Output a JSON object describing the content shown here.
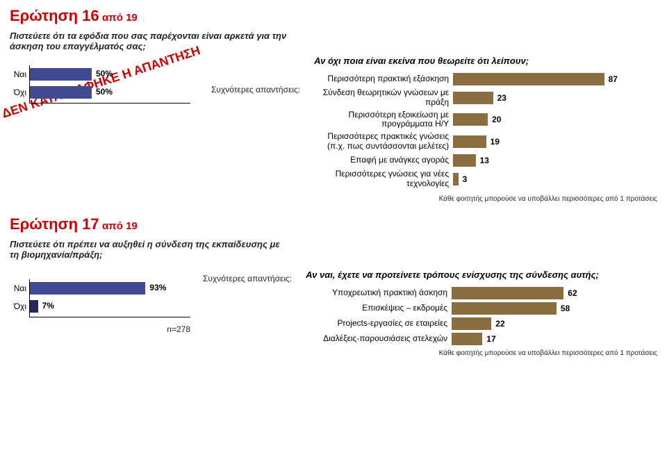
{
  "colors": {
    "accent": "#cc0000",
    "bar1": "#3f4a93",
    "bar1b": "#25265e",
    "bar2": "#8c6d3f",
    "bg": "#ffffff",
    "text": "#222222"
  },
  "q16": {
    "title_main": "Ερώτηση 16",
    "title_sub": "από 19",
    "question": "Πιστεύετε ότι τα εφόδια που σας παρέχονται είναι αρκετά για την άσκηση του επαγγέλματός σας;",
    "stamp": "ΔΕΝ ΚΑΤΑΓΡΑΦΗΚΕ Η ΑΠΑΝΤΗΣΗ",
    "yesno": {
      "rows": [
        {
          "label": "Ναι",
          "pct": 50
        },
        {
          "label": "Όχι",
          "pct": 50
        }
      ],
      "bar_color": "#3f4a93",
      "max": 100
    },
    "freq_label": "Συχνότερες απαντήσεις:",
    "sub_question": "Αν όχι ποια είναι εκείνα που θεωρείτε ότι λείπουν;",
    "hbar": {
      "label_width": 200,
      "track_width": 250,
      "bar_color": "#8c6d3f",
      "max": 100,
      "rows": [
        {
          "label": "Περισσότερη πρακτική εξάσκηση",
          "val": 87
        },
        {
          "label": "Σύνδεση θεωρητικών γνώσεων με πράξη",
          "val": 23
        },
        {
          "label": "Περισσότερη εξοικείωση με προγράμματα Η/Υ",
          "val": 20
        },
        {
          "label": "Περισσότερες πρακτικές γνώσεις (π.χ. πως συντάσσονται μελέτες)",
          "val": 19
        },
        {
          "label": "Επαφή με ανάγκες αγοράς",
          "val": 13
        },
        {
          "label": "Περισσότερες γνώσεις για νέες τεχνολογίες",
          "val": 3
        }
      ]
    },
    "footnote": "Κάθε φοιτητής μπορούσε να υποβάλλει περισσότερες από 1 προτάσεις"
  },
  "q17": {
    "title_main": "Ερώτηση 17",
    "title_sub": "από 19",
    "question": "Πιστεύετε ότι πρέπει να αυξηθεί η σύνδεση της εκπαίδευσης με τη βιομηχανία/πράξη;",
    "yesno": {
      "rows": [
        {
          "label": "Ναι",
          "pct": 93
        },
        {
          "label": "Όχι",
          "pct": 7
        }
      ],
      "bar_color_top": "#3f4a93",
      "bar_color_bot": "#25265e",
      "max": 100
    },
    "n_note": "n=278",
    "freq_label": "Συχνότερες απαντήσεις:",
    "sub_question": "Αν ναι, έχετε να προτείνετε τρόπους ενίσχυσης της σύνδεσης αυτής;",
    "hbar": {
      "label_width": 210,
      "track_width": 260,
      "bar_color": "#8c6d3f",
      "max": 100,
      "rows": [
        {
          "label": "Υποχρεωτική πρακτική άσκηση",
          "val": 62
        },
        {
          "label": "Επισκέψεις – εκδρομές",
          "val": 58
        },
        {
          "label": "Projects-εργασίες σε εταιρείες",
          "val": 22
        },
        {
          "label": "Διαλέξεις-παρουσιάσεις στελεχών",
          "val": 17
        }
      ]
    },
    "footnote": "Κάθε φοιτητής μπορούσε να υποβάλλει περισσότερες από 1 προτάσεις"
  }
}
